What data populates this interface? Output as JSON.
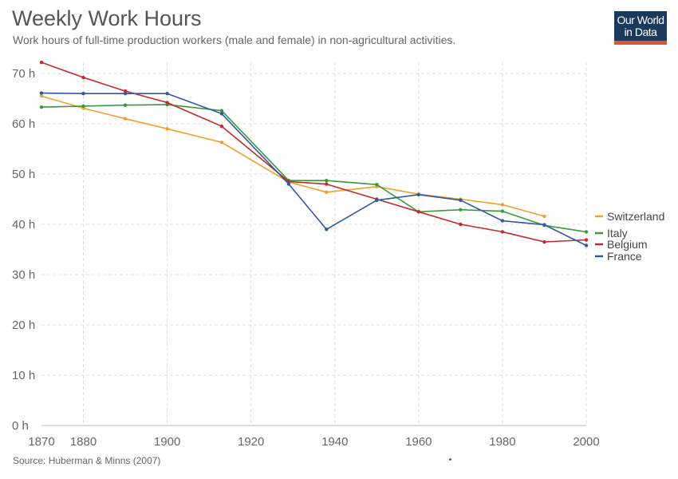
{
  "header": {
    "title": "Weekly Work Hours",
    "subtitle": "Work hours of full-time production workers (male and female) in non-agricultural activities."
  },
  "logo": {
    "line1": "Our World",
    "line2": "in Data"
  },
  "footer": {
    "source": "Source: Huberman & Minns (2007)"
  },
  "chart_data": {
    "type": "line",
    "title": "Weekly Work Hours",
    "subtitle": "Work hours of full-time production workers (male and female) in non-agricultural activities.",
    "xlabel": "",
    "ylabel": "",
    "xlim": [
      1870,
      2000
    ],
    "ylim": [
      0,
      70
    ],
    "x_ticks": [
      1870,
      1880,
      1900,
      1920,
      1940,
      1960,
      1980,
      2000
    ],
    "y_ticks": [
      0,
      10,
      20,
      30,
      40,
      50,
      60,
      70
    ],
    "y_tick_labels": [
      "0 h",
      "10 h",
      "20 h",
      "30 h",
      "40 h",
      "50 h",
      "60 h",
      "70 h"
    ],
    "grid": true,
    "legend_position": "right",
    "series": [
      {
        "name": "Switzerland",
        "color": "#f0a02c",
        "x": [
          1870,
          1880,
          1890,
          1900,
          1913,
          1929,
          1938,
          1950,
          1960,
          1970,
          1980,
          1990
        ],
        "y": [
          65.5,
          63.1,
          61.0,
          59.0,
          56.3,
          48.4,
          46.4,
          47.5,
          46.0,
          45.0,
          43.9,
          41.6
        ]
      },
      {
        "name": "Italy",
        "color": "#3a9a3a",
        "x": [
          1870,
          1880,
          1890,
          1900,
          1913,
          1929,
          1938,
          1950,
          1960,
          1970,
          1980,
          1990,
          2000
        ],
        "y": [
          63.3,
          63.5,
          63.7,
          63.8,
          62.6,
          48.7,
          48.7,
          47.9,
          42.5,
          42.9,
          42.6,
          39.8,
          38.5
        ]
      },
      {
        "name": "Belgium",
        "color": "#c52a2a",
        "x": [
          1870,
          1880,
          1890,
          1900,
          1913,
          1929,
          1938,
          1950,
          1960,
          1970,
          1980,
          1990,
          2000
        ],
        "y": [
          72.2,
          69.2,
          66.5,
          64.2,
          59.5,
          48.5,
          48.0,
          45.0,
          42.5,
          40.0,
          38.5,
          36.5,
          36.9
        ]
      },
      {
        "name": "France",
        "color": "#2f5aa6",
        "x": [
          1870,
          1880,
          1890,
          1900,
          1913,
          1929,
          1938,
          1950,
          1960,
          1970,
          1980,
          1990,
          2000
        ],
        "y": [
          66.1,
          66.0,
          66.0,
          66.0,
          62.0,
          48.0,
          39.0,
          44.8,
          45.9,
          44.8,
          40.7,
          39.9,
          35.8
        ]
      }
    ]
  }
}
